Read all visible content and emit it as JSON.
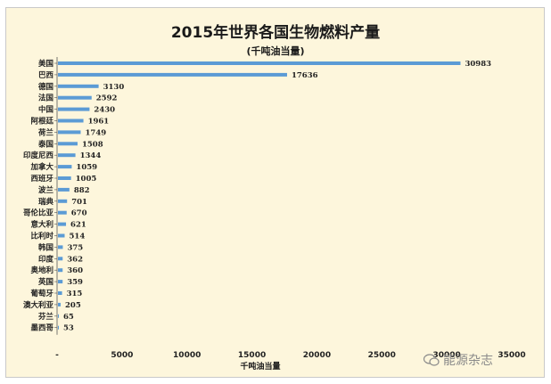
{
  "chart_data": {
    "type": "bar",
    "orientation": "horizontal",
    "title": "2015年世界各国生物燃料产量",
    "subtitle": "(千吨油当量)",
    "xlabel": "千吨油当量",
    "ylabel": "",
    "xlim": [
      0,
      35000
    ],
    "x_ticks": [
      "-",
      "5000",
      "10000",
      "15000",
      "20000",
      "25000",
      "30000",
      "35000"
    ],
    "categories": [
      "美国",
      "巴西",
      "德国",
      "法国",
      "中国",
      "阿根廷",
      "荷兰",
      "泰国",
      "印度尼西",
      "加拿大",
      "西班牙",
      "波兰",
      "瑞典",
      "哥伦比亚",
      "意大利",
      "比利时",
      "韩国",
      "印度",
      "奥地利",
      "英国",
      "葡萄牙",
      "澳大利亚",
      "芬兰",
      "墨西哥"
    ],
    "values": [
      30983,
      17636,
      3130,
      2592,
      2430,
      1961,
      1749,
      1508,
      1344,
      1059,
      1005,
      882,
      701,
      670,
      621,
      514,
      375,
      362,
      360,
      359,
      315,
      205,
      65,
      53
    ],
    "bar_color": "#5b9bd5",
    "grid": false,
    "legend": "none"
  },
  "watermark": {
    "text": "能源杂志",
    "icon": "wechat-icon"
  }
}
